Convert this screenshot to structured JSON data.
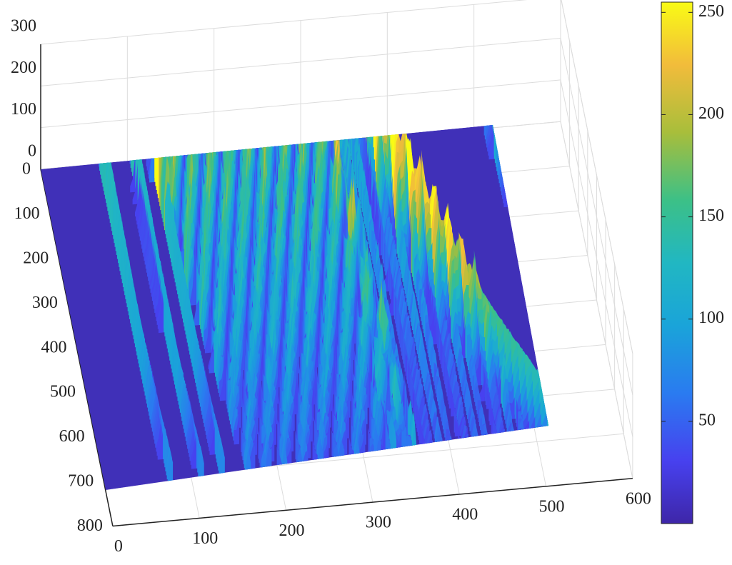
{
  "chart_data": {
    "type": "surface3d",
    "title": "",
    "xlabel": "",
    "ylabel": "",
    "zlabel": "",
    "x_ticks": [
      "0",
      "100",
      "200",
      "300",
      "400",
      "500",
      "600"
    ],
    "y_ticks": [
      "0",
      "100",
      "200",
      "300",
      "400",
      "500",
      "600",
      "700",
      "800"
    ],
    "z_ticks": [
      "0",
      "100",
      "200",
      "300"
    ],
    "colorbar_ticks": [
      "50",
      "100",
      "150",
      "200",
      "250"
    ],
    "xlim": [
      0,
      600
    ],
    "ylim": [
      0,
      800
    ],
    "zlim": [
      0,
      300
    ],
    "color_range": [
      0,
      255
    ],
    "colormap": "parula",
    "grid": true,
    "colorbar": "right",
    "x_extent": 530,
    "y_extent": 720,
    "features": [
      {
        "name": "main_arc",
        "x_top": 370,
        "x_bottom": 520,
        "peak": 255
      },
      {
        "name": "bright_band",
        "x_from": 120,
        "x_to": 320,
        "level": 210
      },
      {
        "name": "right_arc",
        "x": 520,
        "level": 150
      },
      {
        "name": "left_streaks",
        "x": [
          70,
          105,
          130
        ],
        "level": 130
      }
    ]
  },
  "colors": {
    "low": "#3E26A8",
    "mid": "#21B7C2",
    "high": "#F9FB15",
    "grid": "#DCDCDC",
    "axis": "#222222"
  }
}
